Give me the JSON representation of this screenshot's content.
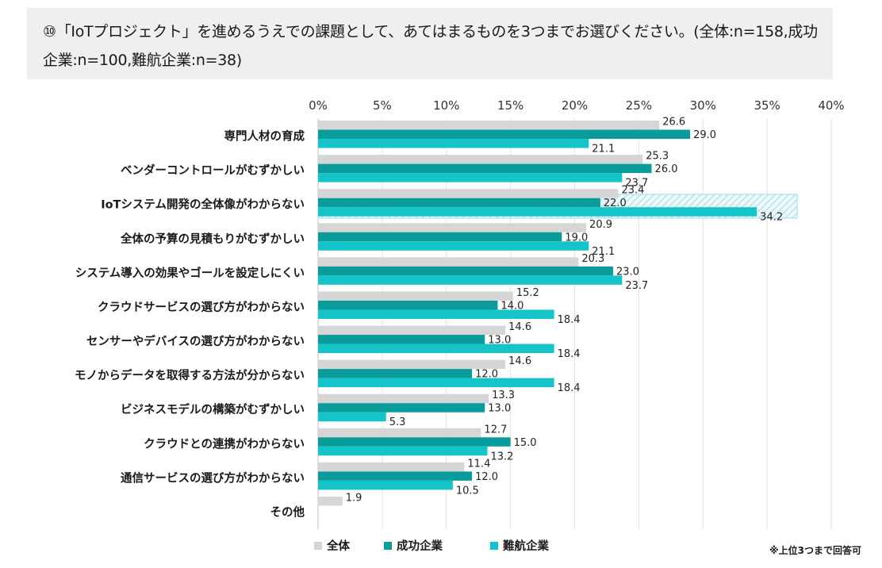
{
  "title": "⑩「IoTプロジェクト」を進めるうえでの課題として、あてはまるものを3つまでお選びください。(全体:n=158,成功企業:n=100,難航企業:n=38)",
  "footnote": "※上位3つまで回答可",
  "chart_data": {
    "type": "bar",
    "orientation": "horizontal",
    "title": "⑩「IoTプロジェクト」を進めるうえでの課題として、あてはまるものを3つまでお選びください。(全体:n=158,成功企業:n=100,難航企業:n=38)",
    "xlim": [
      0,
      40
    ],
    "x_ticks": [
      "0%",
      "5%",
      "10%",
      "15%",
      "20%",
      "25%",
      "30%",
      "35%",
      "40%"
    ],
    "gridlines": true,
    "legend_position": "bottom",
    "categories": [
      "専門人材の育成",
      "ベンダーコントロールがむずかしい",
      "IoTシステム開発の全体像がわからない",
      "全体の予算の見積もりがむずかしい",
      "システム導入の効果やゴールを設定しにくい",
      "クラウドサービスの選び方がわからない",
      "センサーやデバイスの選び方がわからない",
      "モノからデータを取得する方法が分からない",
      "ビジネスモデルの構築がむずかしい",
      "クラウドとの連携がわからない",
      "通信サービスの選び方がわからない",
      "その他"
    ],
    "series": [
      {
        "name": "全体",
        "color": "#d6d6d6",
        "values": [
          26.6,
          25.3,
          23.4,
          20.9,
          20.3,
          15.2,
          14.6,
          14.6,
          13.3,
          12.7,
          11.4,
          1.9
        ],
        "labels": [
          "26.6",
          "25.3",
          "23.4",
          "20.9",
          "20.3",
          "15.2",
          "14.6",
          "14.6",
          "13.3",
          "12.7",
          "11.4",
          "1.9"
        ]
      },
      {
        "name": "成功企業",
        "color": "#0a9b9b",
        "values": [
          29.0,
          26.0,
          22.0,
          19.0,
          23.0,
          14.0,
          13.0,
          12.0,
          13.0,
          15.0,
          12.0,
          null
        ],
        "labels": [
          "29.0",
          "26.0",
          "22.0",
          "19.0",
          "23.0",
          "14.0",
          "13.0",
          "12.0",
          "13.0",
          "15.0",
          "12.0",
          ""
        ]
      },
      {
        "name": "難航企業",
        "color": "#14c4c8",
        "values": [
          21.1,
          23.7,
          34.2,
          21.1,
          23.7,
          18.4,
          18.4,
          18.4,
          5.3,
          13.2,
          10.5,
          null
        ],
        "labels": [
          "21.1",
          "23.7",
          "34.2",
          "21.1",
          "23.7",
          "18.4",
          "18.4",
          "18.4",
          "5.3",
          "13.2",
          "10.5",
          ""
        ]
      }
    ],
    "highlight_category": "IoTシステム開発の全体像がわからない"
  }
}
